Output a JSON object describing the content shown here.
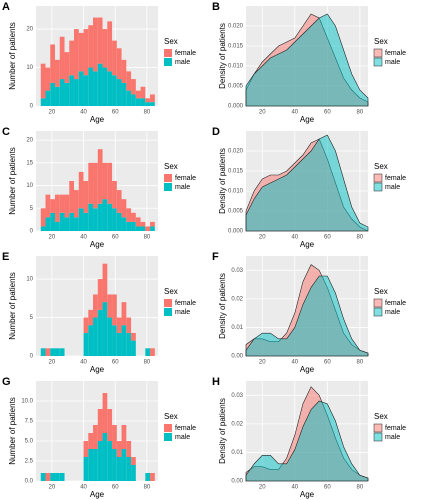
{
  "chart_data": [
    {
      "type": "histogram",
      "label": "A",
      "xlabel": "Age",
      "ylabel": "Number of patients",
      "legend_title": "Sex",
      "bins": [
        13,
        16,
        19,
        22,
        25,
        28,
        31,
        34,
        37,
        40,
        43,
        46,
        49,
        52,
        55,
        58,
        61,
        64,
        67,
        70,
        73,
        76,
        79,
        82,
        85
      ],
      "series": [
        {
          "name": "female",
          "color": "#F8766D",
          "values": [
            9,
            6,
            10,
            7,
            11,
            8,
            9,
            13,
            10,
            12,
            11,
            14,
            12,
            10,
            13,
            9,
            8,
            6,
            5,
            4,
            2,
            3,
            1,
            2
          ]
        },
        {
          "name": "male",
          "color": "#00BFC4",
          "values": [
            2,
            4,
            6,
            5,
            7,
            6,
            8,
            7,
            9,
            8,
            10,
            9,
            11,
            10,
            9,
            8,
            7,
            6,
            4,
            3,
            2,
            2,
            1,
            1
          ]
        }
      ],
      "xlim": [
        10,
        87
      ],
      "xticks": [
        20,
        40,
        60,
        80
      ],
      "ylim": [
        0,
        26
      ],
      "yticks": [
        0,
        10,
        20
      ],
      "grid": true
    },
    {
      "type": "density",
      "label": "B",
      "xlabel": "Age",
      "ylabel": "Density of patients",
      "legend_title": "Sex",
      "x": [
        10,
        15,
        20,
        25,
        30,
        35,
        40,
        45,
        50,
        55,
        60,
        65,
        70,
        75,
        80,
        85
      ],
      "series": [
        {
          "name": "female",
          "color": "#F8766D",
          "values": [
            0.004,
            0.008,
            0.011,
            0.013,
            0.015,
            0.016,
            0.017,
            0.02,
            0.023,
            0.022,
            0.017,
            0.012,
            0.007,
            0.004,
            0.002,
            0.001
          ]
        },
        {
          "name": "male",
          "color": "#00BFC4",
          "values": [
            0.005,
            0.008,
            0.01,
            0.012,
            0.013,
            0.014,
            0.016,
            0.018,
            0.02,
            0.022,
            0.023,
            0.02,
            0.014,
            0.008,
            0.004,
            0.002
          ]
        }
      ],
      "xlim": [
        10,
        85
      ],
      "xticks": [
        20,
        40,
        60,
        80
      ],
      "ylim": [
        0,
        0.025
      ],
      "yticks": [
        {
          "value": 0,
          "label": "0.000"
        },
        {
          "value": 0.005,
          "label": "0.005"
        },
        {
          "value": 0.01,
          "label": "0.010"
        },
        {
          "value": 0.015,
          "label": "0.015"
        },
        {
          "value": 0.02,
          "label": "0.020"
        }
      ],
      "grid": true,
      "alpha": 0.5
    },
    {
      "type": "histogram",
      "label": "C",
      "xlabel": "Age",
      "ylabel": "Number of patients",
      "legend_title": "Sex",
      "bins": [
        13,
        16,
        19,
        22,
        25,
        28,
        31,
        34,
        37,
        40,
        43,
        46,
        49,
        52,
        55,
        58,
        61,
        64,
        67,
        70,
        73,
        76,
        79,
        82,
        85
      ],
      "series": [
        {
          "name": "female",
          "color": "#F8766D",
          "values": [
            4,
            5,
            3,
            6,
            4,
            5,
            7,
            6,
            8,
            7,
            9,
            10,
            12,
            8,
            9,
            6,
            5,
            4,
            3,
            2,
            2,
            1,
            1,
            1
          ]
        },
        {
          "name": "male",
          "color": "#00BFC4",
          "values": [
            1,
            3,
            4,
            2,
            4,
            3,
            4,
            3,
            5,
            4,
            6,
            5,
            6,
            7,
            6,
            5,
            4,
            3,
            2,
            2,
            1,
            1,
            0,
            1
          ]
        }
      ],
      "xlim": [
        10,
        87
      ],
      "xticks": [
        20,
        40,
        60,
        80
      ],
      "ylim": [
        0,
        22
      ],
      "yticks": [
        0,
        5,
        10,
        15,
        20
      ],
      "grid": true
    },
    {
      "type": "density",
      "label": "D",
      "xlabel": "Age",
      "ylabel": "Density of patients",
      "legend_title": "Sex",
      "x": [
        10,
        15,
        20,
        25,
        30,
        35,
        40,
        45,
        50,
        55,
        60,
        65,
        70,
        75,
        80,
        85
      ],
      "series": [
        {
          "name": "female",
          "color": "#F8766D",
          "values": [
            0.005,
            0.01,
            0.013,
            0.014,
            0.014,
            0.015,
            0.017,
            0.019,
            0.022,
            0.023,
            0.018,
            0.012,
            0.006,
            0.003,
            0.001,
            0.0
          ]
        },
        {
          "name": "male",
          "color": "#00BFC4",
          "values": [
            0.004,
            0.008,
            0.011,
            0.012,
            0.013,
            0.014,
            0.016,
            0.018,
            0.02,
            0.023,
            0.024,
            0.02,
            0.013,
            0.006,
            0.002,
            0.001
          ]
        }
      ],
      "xlim": [
        10,
        85
      ],
      "xticks": [
        20,
        40,
        60,
        80
      ],
      "ylim": [
        0,
        0.025
      ],
      "yticks": [
        {
          "value": 0,
          "label": "0.000"
        },
        {
          "value": 0.005,
          "label": "0.005"
        },
        {
          "value": 0.01,
          "label": "0.010"
        },
        {
          "value": 0.015,
          "label": "0.015"
        },
        {
          "value": 0.02,
          "label": "0.020"
        }
      ],
      "grid": true,
      "alpha": 0.5
    },
    {
      "type": "histogram",
      "label": "E",
      "xlabel": "Age",
      "ylabel": "Number of patients",
      "legend_title": "Sex",
      "bins": [
        13,
        16,
        19,
        22,
        25,
        28,
        31,
        34,
        37,
        40,
        43,
        46,
        49,
        52,
        55,
        58,
        61,
        64,
        67,
        70,
        73,
        76,
        79,
        82,
        85
      ],
      "series": [
        {
          "name": "female",
          "color": "#F8766D",
          "values": [
            0,
            1,
            0,
            0,
            0,
            0,
            0,
            0,
            0,
            2,
            2,
            3,
            4,
            5,
            3,
            4,
            2,
            3,
            2,
            1,
            0,
            0,
            0,
            1
          ]
        },
        {
          "name": "male",
          "color": "#00BFC4",
          "values": [
            1,
            0,
            1,
            1,
            1,
            0,
            0,
            0,
            0,
            3,
            4,
            5,
            6,
            7,
            5,
            4,
            3,
            4,
            3,
            2,
            0,
            0,
            1,
            0
          ]
        }
      ],
      "xlim": [
        10,
        87
      ],
      "xticks": [
        20,
        40,
        60,
        80
      ],
      "ylim": [
        0,
        13
      ],
      "yticks": [
        0,
        5,
        10
      ],
      "grid": true
    },
    {
      "type": "density",
      "label": "F",
      "xlabel": "Age",
      "ylabel": "Density of patients",
      "legend_title": "Sex",
      "x": [
        10,
        15,
        20,
        25,
        30,
        35,
        40,
        45,
        50,
        55,
        60,
        65,
        70,
        75,
        80,
        85
      ],
      "series": [
        {
          "name": "female",
          "color": "#F8766D",
          "values": [
            0.004,
            0.006,
            0.006,
            0.005,
            0.005,
            0.008,
            0.015,
            0.026,
            0.032,
            0.03,
            0.024,
            0.016,
            0.008,
            0.004,
            0.002,
            0.001
          ]
        },
        {
          "name": "male",
          "color": "#00BFC4",
          "values": [
            0.002,
            0.006,
            0.008,
            0.008,
            0.006,
            0.006,
            0.01,
            0.018,
            0.024,
            0.028,
            0.028,
            0.022,
            0.013,
            0.006,
            0.002,
            0.001
          ]
        }
      ],
      "xlim": [
        10,
        85
      ],
      "xticks": [
        20,
        40,
        60,
        80
      ],
      "ylim": [
        0,
        0.035
      ],
      "yticks": [
        {
          "value": 0,
          "label": "0.00"
        },
        {
          "value": 0.01,
          "label": "0.01"
        },
        {
          "value": 0.02,
          "label": "0.02"
        },
        {
          "value": 0.03,
          "label": "0.03"
        }
      ],
      "grid": true,
      "alpha": 0.5
    },
    {
      "type": "histogram",
      "label": "G",
      "xlabel": "Age",
      "ylabel": "Number of patients",
      "legend_title": "Sex",
      "bins": [
        13,
        16,
        19,
        22,
        25,
        28,
        31,
        34,
        37,
        40,
        43,
        46,
        49,
        52,
        55,
        58,
        61,
        64,
        67,
        70,
        73,
        76,
        79,
        82,
        85
      ],
      "series": [
        {
          "name": "female",
          "color": "#F8766D",
          "values": [
            0,
            1,
            0,
            0,
            0,
            0,
            0,
            0,
            0,
            2,
            2,
            3,
            4,
            5,
            4,
            3,
            2,
            3,
            2,
            1,
            0,
            0,
            0,
            1
          ]
        },
        {
          "name": "male",
          "color": "#00BFC4",
          "values": [
            1,
            0,
            1,
            1,
            1,
            0,
            0,
            0,
            0,
            3,
            4,
            4,
            5,
            6,
            5,
            4,
            3,
            4,
            3,
            2,
            0,
            0,
            1,
            0
          ]
        }
      ],
      "xlim": [
        10,
        87
      ],
      "xticks": [
        20,
        40,
        60,
        80
      ],
      "ylim": [
        0,
        12.5
      ],
      "yticks": [
        {
          "value": 0,
          "label": "0.0"
        },
        2.5,
        {
          "value": 5,
          "label": "5.0"
        },
        7.5,
        {
          "value": 10,
          "label": "10.0"
        }
      ],
      "grid": true
    },
    {
      "type": "density",
      "label": "H",
      "xlabel": "Age",
      "ylabel": "Density of patients",
      "legend_title": "Sex",
      "x": [
        10,
        15,
        20,
        25,
        30,
        35,
        40,
        45,
        50,
        55,
        60,
        65,
        70,
        75,
        80,
        85
      ],
      "series": [
        {
          "name": "female",
          "color": "#F8766D",
          "values": [
            0.003,
            0.005,
            0.005,
            0.004,
            0.004,
            0.008,
            0.016,
            0.027,
            0.033,
            0.03,
            0.023,
            0.015,
            0.008,
            0.004,
            0.002,
            0.001
          ]
        },
        {
          "name": "male",
          "color": "#00BFC4",
          "values": [
            0.002,
            0.006,
            0.009,
            0.009,
            0.006,
            0.006,
            0.011,
            0.019,
            0.025,
            0.028,
            0.027,
            0.021,
            0.012,
            0.006,
            0.002,
            0.001
          ]
        }
      ],
      "xlim": [
        10,
        85
      ],
      "xticks": [
        20,
        40,
        60,
        80
      ],
      "ylim": [
        0,
        0.035
      ],
      "yticks": [
        {
          "value": 0,
          "label": "0.00"
        },
        {
          "value": 0.01,
          "label": "0.01"
        },
        {
          "value": 0.02,
          "label": "0.02"
        },
        {
          "value": 0.03,
          "label": "0.03"
        }
      ],
      "grid": true,
      "alpha": 0.5
    }
  ]
}
